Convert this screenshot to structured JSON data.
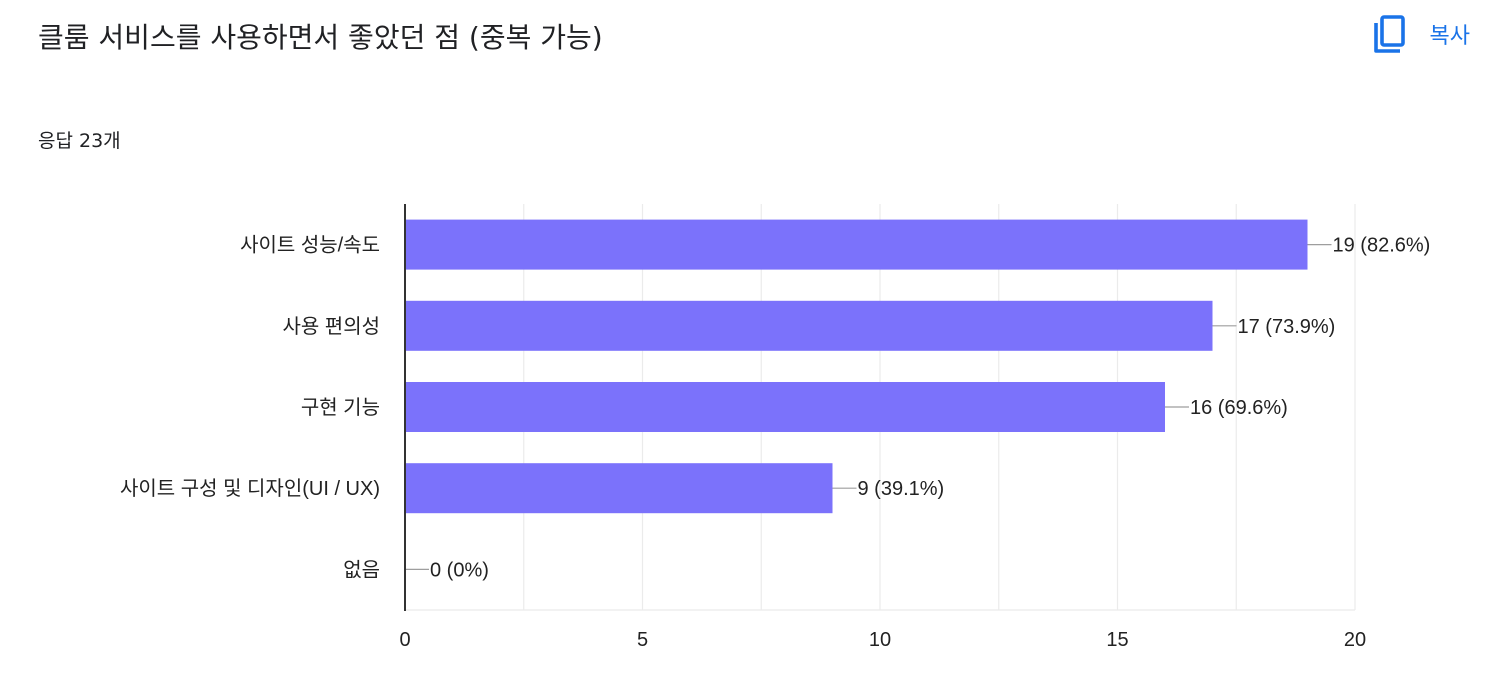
{
  "question": {
    "title": "클룸 서비스를 사용하면서 좋았던 점 (중복 가능)",
    "copy_label": "복사",
    "response_count": "응답 23개"
  },
  "colors": {
    "bar": "#7b72fb",
    "accent": "#1a73e8",
    "grid": "#ebebeb",
    "axis": "#333333",
    "leader": "#9e9e9e"
  },
  "chart_data": {
    "type": "bar",
    "orientation": "horizontal",
    "categories": [
      "사이트 성능/속도",
      "사용 편의성",
      "구현 기능",
      "사이트 구성 및 디자인(UI / UX)",
      "없음"
    ],
    "values": [
      19,
      17,
      16,
      9,
      0
    ],
    "data_labels": [
      "19 (82.6%)",
      "17 (73.9%)",
      "16 (69.6%)",
      "9 (39.1%)",
      "0 (0%)"
    ],
    "xlim": [
      0,
      20
    ],
    "xticks": [
      0,
      5,
      10,
      15,
      20
    ],
    "title": "",
    "xlabel": "",
    "ylabel": "",
    "grid": true,
    "legend": "none"
  }
}
